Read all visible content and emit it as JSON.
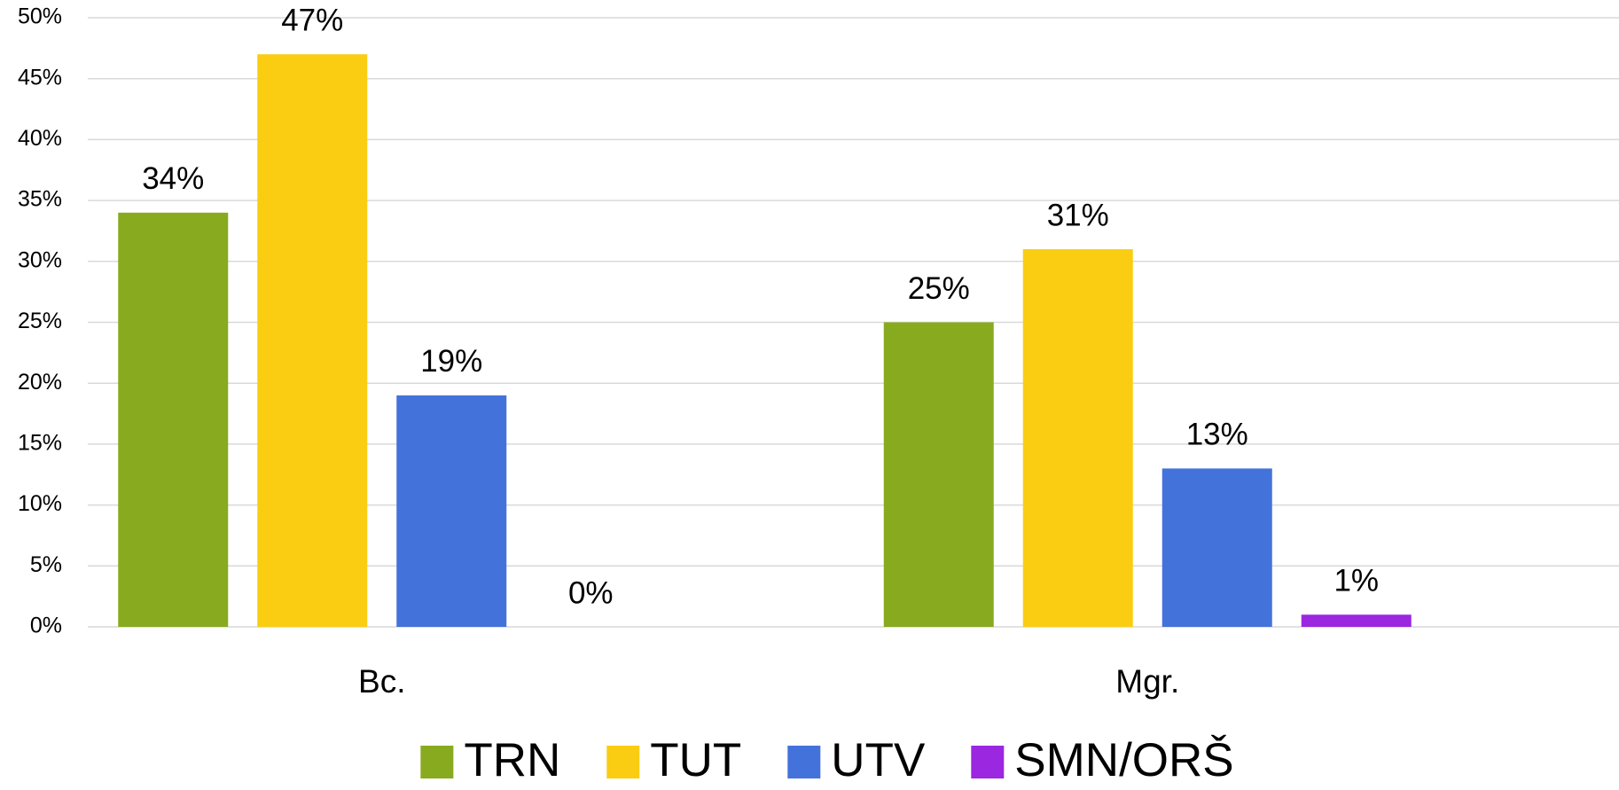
{
  "chart_data": {
    "type": "bar",
    "categories": [
      "Bc.",
      "Mgr."
    ],
    "series": [
      {
        "name": "TRN",
        "color": "#88aa1f",
        "values": [
          34,
          25
        ],
        "value_labels": [
          "34%",
          "25%"
        ]
      },
      {
        "name": "TUT",
        "color": "#facd12",
        "values": [
          47,
          31
        ],
        "value_labels": [
          "47%",
          "31%"
        ]
      },
      {
        "name": "UTV",
        "color": "#4472db",
        "values": [
          19,
          13
        ],
        "value_labels": [
          "19%",
          "13%"
        ]
      },
      {
        "name": "SMN/ORŠ",
        "color": "#9b27e0",
        "values": [
          0,
          1
        ],
        "value_labels": [
          "0%",
          "1%"
        ]
      }
    ],
    "ylim": [
      0,
      50
    ],
    "yticks": [
      {
        "value": 0,
        "label": "0%"
      },
      {
        "value": 5,
        "label": "5%"
      },
      {
        "value": 10,
        "label": "10%"
      },
      {
        "value": 15,
        "label": "15%"
      },
      {
        "value": 20,
        "label": "20%"
      },
      {
        "value": 25,
        "label": "25%"
      },
      {
        "value": 30,
        "label": "30%"
      },
      {
        "value": 35,
        "label": "35%"
      },
      {
        "value": 40,
        "label": "40%"
      },
      {
        "value": 45,
        "label": "45%"
      },
      {
        "value": 50,
        "label": "50%"
      }
    ],
    "grid": true,
    "legend": "bottom"
  }
}
